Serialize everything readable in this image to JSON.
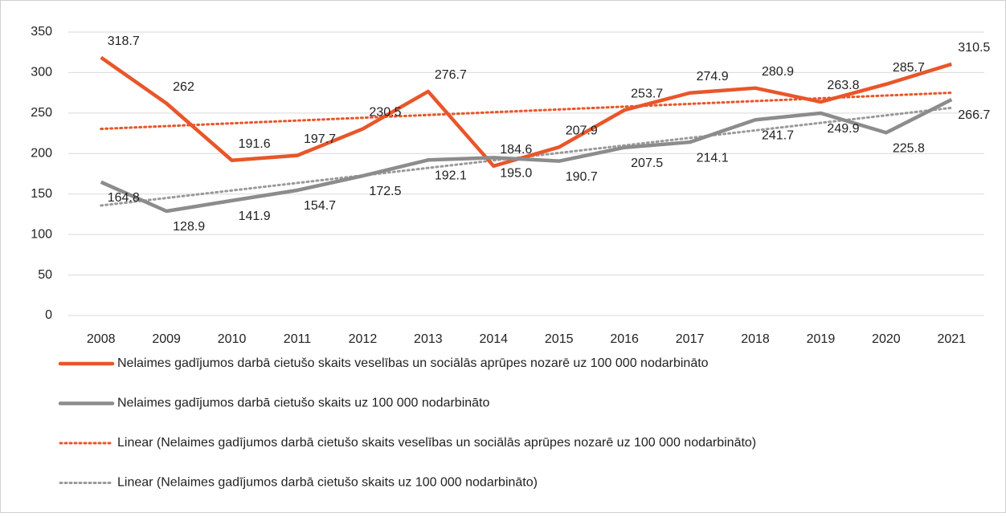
{
  "chart_data": {
    "type": "line",
    "categories": [
      "2008",
      "2009",
      "2010",
      "2011",
      "2012",
      "2013",
      "2014",
      "2015",
      "2016",
      "2017",
      "2018",
      "2019",
      "2020",
      "2021"
    ],
    "series": [
      {
        "name": "Nelaimes gadījumos darbā cietušo skaits veselības un sociālās aprūpes nozarē uz 100 000 nodarbināto",
        "color": "#e8562a",
        "values": [
          318.7,
          262,
          191.6,
          197.7,
          230.5,
          276.7,
          184.6,
          207.9,
          253.7,
          274.9,
          280.9,
          263.8,
          285.7,
          310.5
        ]
      },
      {
        "name": "Nelaimes gadījumos darbā cietušo skaits uz 100 000 nodarbināto",
        "color": "#8c8c8c",
        "values": [
          164.8,
          128.9,
          141.9,
          154.7,
          172.5,
          192.1,
          195.0,
          190.7,
          207.5,
          214.1,
          241.7,
          249.9,
          225.8,
          266.7
        ],
        "value_labels": [
          "164.8",
          "128.9",
          "141.9",
          "154.7",
          "172.5",
          "192.1",
          "195.0",
          "190.7",
          "207.5",
          "214.1",
          "241.7",
          "249.9",
          "225.8",
          "266.7"
        ]
      }
    ],
    "trendlines": [
      {
        "name": "Linear (Nelaimes gadījumos darbā cietušo skaits veselības un sociālās aprūpes nozarē uz 100 000 nodarbināto)",
        "color": "#e8562a",
        "of": 0
      },
      {
        "name": "Linear (Nelaimes gadījumos darbā cietušo skaits uz 100 000 nodarbināto)",
        "color": "#9a9a9a",
        "of": 1
      }
    ],
    "ylim": [
      0,
      350
    ],
    "yticks": [
      0,
      50,
      100,
      150,
      200,
      250,
      300,
      350
    ],
    "grid": true
  }
}
